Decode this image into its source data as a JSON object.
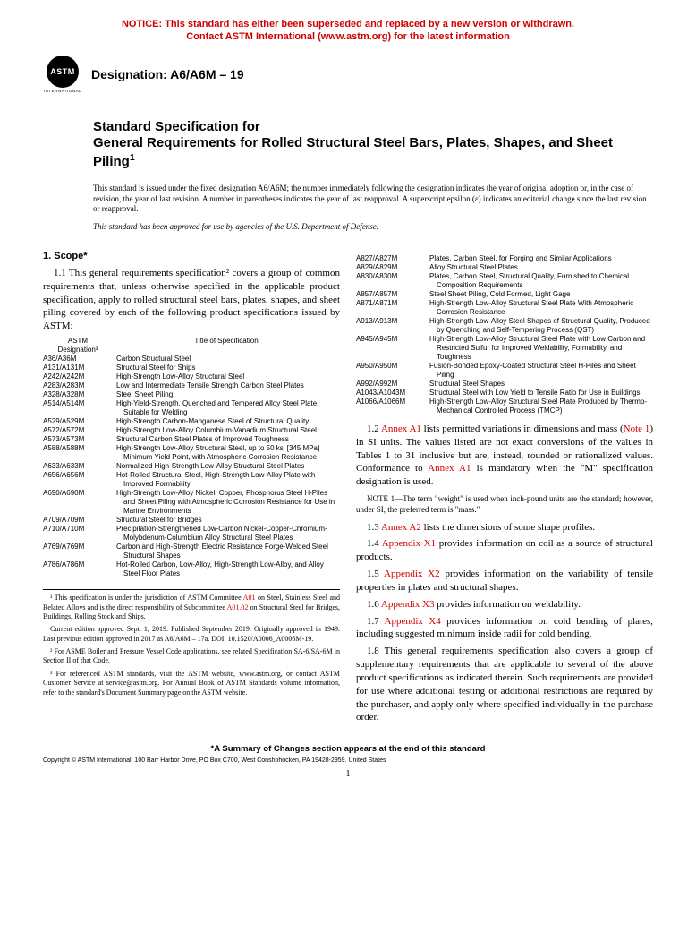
{
  "notice": {
    "line1": "NOTICE: This standard has either been superseded and replaced by a new version or withdrawn.",
    "line2": "Contact ASTM International (www.astm.org) for the latest information"
  },
  "logo": {
    "text": "ASTM",
    "sub": "INTERNATIONAL"
  },
  "designation": "Designation: A6/A6M – 19",
  "title": {
    "line1": "Standard Specification for",
    "line2": "General Requirements for Rolled Structural Steel Bars, Plates, Shapes, and Sheet Piling",
    "sup": "1"
  },
  "issue_note": "This standard is issued under the fixed designation A6/A6M; the number immediately following the designation indicates the year of original adoption or, in the case of revision, the year of last revision. A number in parentheses indicates the year of last reapproval. A superscript epsilon (ε) indicates an editorial change since the last revision or reapproval.",
  "approved_note": "This standard has been approved for use by agencies of the U.S. Department of Defense.",
  "scope_head": "1. Scope*",
  "para_1_1": "1.1 This general requirements specification² covers a group of common requirements that, unless otherwise specified in the applicable product specification, apply to rolled structural steel bars, plates, shapes, and sheet piling covered by each of the following product specifications issued by ASTM:",
  "table_head": {
    "desig_l1": "ASTM",
    "desig_l2": "Designation³",
    "title": "Title of Specification"
  },
  "specs_left": [
    {
      "d": "A36/A36M",
      "t": "Carbon Structural Steel"
    },
    {
      "d": "A131/A131M",
      "t": "Structural Steel for Ships"
    },
    {
      "d": "A242/A242M",
      "t": "High-Strength Low-Alloy Structural Steel"
    },
    {
      "d": "A283/A283M",
      "t": "Low and Intermediate Tensile Strength Carbon Steel Plates"
    },
    {
      "d": "A328/A328M",
      "t": "Steel Sheet Piling"
    },
    {
      "d": "A514/A514M",
      "t": "High-Yield-Strength, Quenched and Tempered Alloy Steel Plate, Suitable for Welding"
    },
    {
      "d": "A529/A529M",
      "t": "High-Strength Carbon-Manganese Steel of Structural Quality"
    },
    {
      "d": "A572/A572M",
      "t": "High-Strength Low-Alloy Columbium-Vanadium Structural Steel"
    },
    {
      "d": "A573/A573M",
      "t": "Structural Carbon Steel Plates of Improved Toughness"
    },
    {
      "d": "A588/A588M",
      "t": "High-Strength Low-Alloy Structural Steel, up to 50 ksi [345 MPa] Minimum Yield Point, with Atmospheric Corrosion Resistance"
    },
    {
      "d": "A633/A633M",
      "t": "Normalized High-Strength Low-Alloy Structural Steel Plates"
    },
    {
      "d": "A656/A656M",
      "t": "Hot-Rolled Structural Steel, High-Strength Low-Alloy Plate with Improved Formability"
    },
    {
      "d": "A690/A690M",
      "t": "High-Strength Low-Alloy Nickel, Copper, Phosphorus Steel H-Piles and Sheet Piling with Atmospheric Corrosion Resistance for Use in Marine Environments"
    },
    {
      "d": "A709/A709M",
      "t": "Structural Steel for Bridges"
    },
    {
      "d": "A710/A710M",
      "t": "Precipitation-Strengthened Low-Carbon Nickel-Copper-Chromium-Molybdenum-Columbium Alloy Structural Steel Plates"
    },
    {
      "d": "A769/A769M",
      "t": "Carbon and High-Strength Electric Resistance Forge-Welded Steel Structural Shapes"
    },
    {
      "d": "A786/A786M",
      "t": "Hot-Rolled Carbon, Low-Alloy, High-Strength Low-Alloy, and Alloy Steel Floor Plates"
    }
  ],
  "specs_right": [
    {
      "d": "A827/A827M",
      "t": "Plates, Carbon Steel, for Forging and Similar Applications"
    },
    {
      "d": "A829/A829M",
      "t": "Alloy Structural Steel Plates"
    },
    {
      "d": "A830/A830M",
      "t": "Plates, Carbon Steel, Structural Quality, Furnished to Chemical Composition Requirements"
    },
    {
      "d": "A857/A857M",
      "t": "Steel Sheet Piling, Cold Formed, Light Gage"
    },
    {
      "d": "A871/A871M",
      "t": "High-Strength Low-Alloy Structural Steel Plate With Atmospheric Corrosion Resistance"
    },
    {
      "d": "A913/A913M",
      "t": "High-Strength Low-Alloy Steel Shapes of Structural Quality, Produced by Quenching and Self-Tempering Process (QST)"
    },
    {
      "d": "A945/A945M",
      "t": "High-Strength Low-Alloy Structural Steel Plate with Low Carbon and Restricted Sulfur for Improved Weldability, Formability, and Toughness"
    },
    {
      "d": "A950/A950M",
      "t": "Fusion-Bonded Epoxy-Coated Structural Steel H-Piles and Sheet Piling"
    },
    {
      "d": "A992/A992M",
      "t": "Structural Steel Shapes"
    },
    {
      "d": "A1043/A1043M",
      "t": "Structural Steel with Low Yield to Tensile Ratio for Use in Buildings"
    },
    {
      "d": "A1066/A1066M",
      "t": "High-Strength Low-Alloy Structural Steel Plate Produced by Thermo-Mechanical Controlled Process (TMCP)"
    }
  ],
  "para_1_2_a": "1.2 ",
  "para_1_2_link1": "Annex A1",
  "para_1_2_b": " lists permitted variations in dimensions and mass (",
  "para_1_2_link2": "Note 1",
  "para_1_2_c": ") in SI units. The values listed are not exact conversions of the values in Tables 1 to 31 inclusive but are, instead, rounded or rationalized values. Conformance to ",
  "para_1_2_link3": "Annex A1",
  "para_1_2_d": " is mandatory when the \"M\" specification designation is used.",
  "note1": "NOTE 1—The term \"weight\" is used when inch-pound units are the standard; however, under SI, the preferred term is \"mass.\"",
  "para_1_3_a": "1.3 ",
  "para_1_3_link": "Annex A2",
  "para_1_3_b": " lists the dimensions of some shape profiles.",
  "para_1_4_a": "1.4 ",
  "para_1_4_link": "Appendix X1",
  "para_1_4_b": " provides information on coil as a source of structural products.",
  "para_1_5_a": "1.5 ",
  "para_1_5_link": "Appendix X2",
  "para_1_5_b": " provides information on the variability of tensile properties in plates and structural shapes.",
  "para_1_6_a": "1.6 ",
  "para_1_6_link": "Appendix X3",
  "para_1_6_b": " provides information on weldability.",
  "para_1_7_a": "1.7 ",
  "para_1_7_link": "Appendix X4",
  "para_1_7_b": " provides information on cold bending of plates, including suggested minimum inside radii for cold bending.",
  "para_1_8": "1.8 This general requirements specification also covers a group of supplementary requirements that are applicable to several of the above product specifications as indicated therein. Such requirements are provided for use where additional testing or additional restrictions are required by the purchaser, and apply only where specified individually in the purchase order.",
  "footnotes": {
    "f1_a": "¹ This specification is under the jurisdiction of ASTM Committee ",
    "f1_link1": "A01",
    "f1_b": " on Steel, Stainless Steel and Related Alloys and is the direct responsibility of Subcommittee ",
    "f1_link2": "A01.02",
    "f1_c": " on Structural Steel for Bridges, Buildings, Rolling Stock and Ships.",
    "f1_d": "Current edition approved Sept. 1, 2019. Published September 2019. Originally approved in 1949. Last previous edition approved in 2017 as A6/A6M – 17a. DOI: 10.1520/A0006_A0006M-19.",
    "f2": "² For ASME Boiler and Pressure Vessel Code applications, see related Specification SA-6/SA-6M in Section II of that Code.",
    "f3": "³ For referenced ASTM standards, visit the ASTM website, www.astm.org, or contact ASTM Customer Service at service@astm.org. For Annual Book of ASTM Standards volume information, refer to the standard's Document Summary page on the ASTM website."
  },
  "summary": "*A Summary of Changes section appears at the end of this standard",
  "copyright": "Copyright © ASTM International, 100 Barr Harbor Drive, PO Box C700, West Conshohocken, PA 19428-2959. United States",
  "pagenum": "1"
}
